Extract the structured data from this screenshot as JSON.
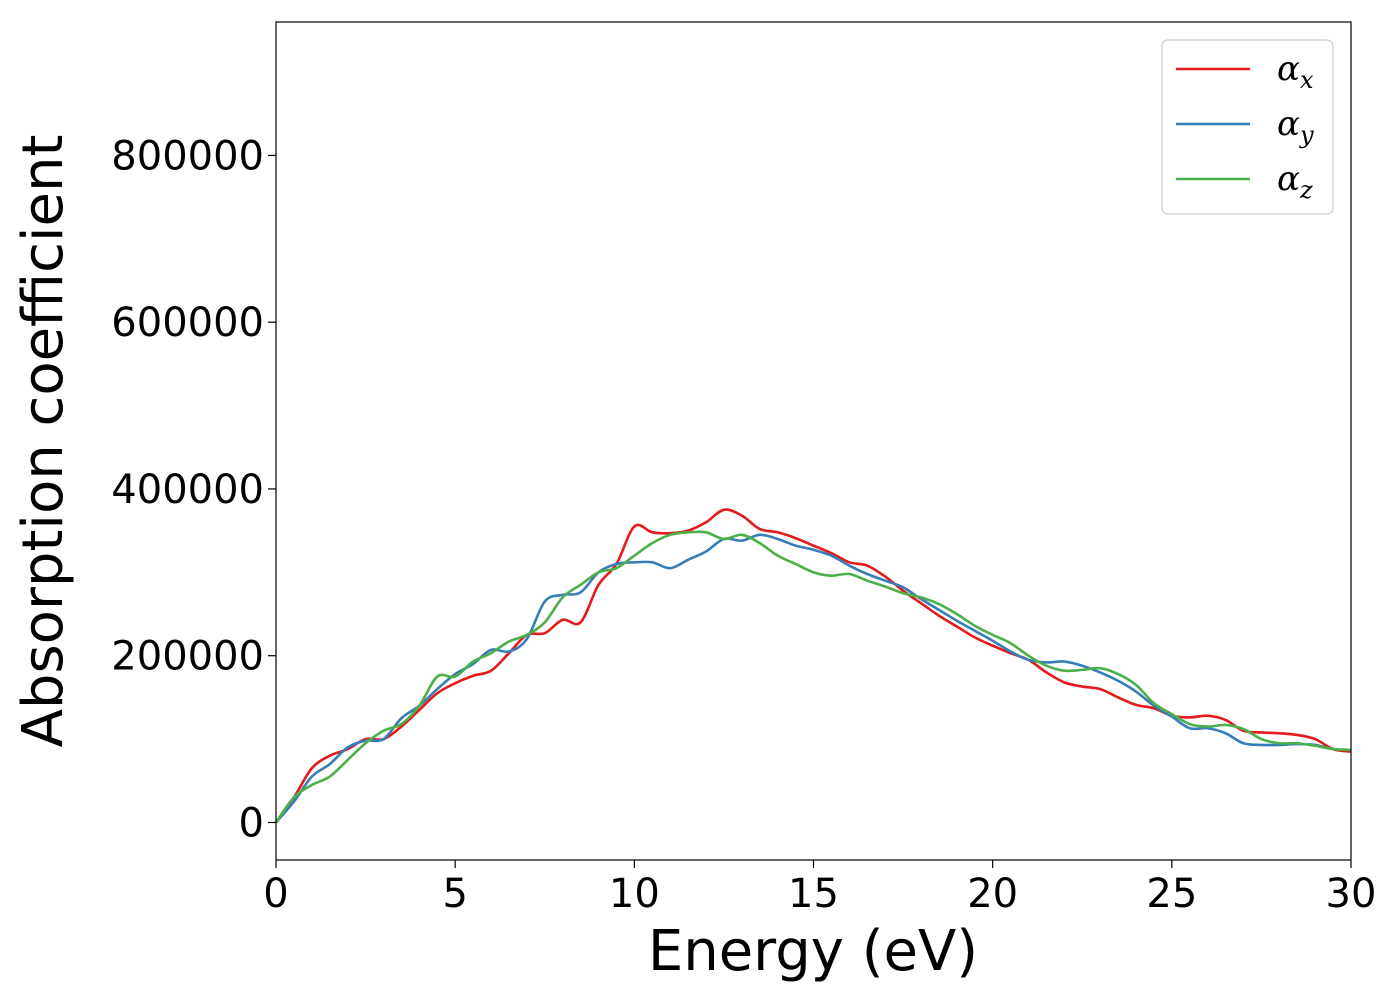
{
  "chart_data": {
    "type": "line",
    "xlabel": "Energy (eV)",
    "ylabel": "Absorption coefficient",
    "xlim": [
      0,
      30
    ],
    "ylim": [
      -45000,
      960000
    ],
    "x_ticks": [
      "0",
      "5",
      "10",
      "15",
      "20",
      "25",
      "30"
    ],
    "y_ticks": [
      "0",
      "200000",
      "400000",
      "600000",
      "800000"
    ],
    "grid": false,
    "legend_position": "top-right",
    "x": [
      0,
      0.5,
      1,
      1.5,
      2,
      2.5,
      3,
      3.5,
      4,
      4.5,
      5,
      5.5,
      6,
      6.5,
      7,
      7.5,
      8,
      8.5,
      9,
      9.5,
      10,
      10.5,
      11,
      11.5,
      12,
      12.5,
      13,
      13.5,
      14,
      14.5,
      15,
      15.5,
      16,
      16.5,
      17,
      17.5,
      18,
      18.5,
      19,
      19.5,
      20,
      20.5,
      21,
      21.5,
      22,
      22.5,
      23,
      23.5,
      24,
      24.5,
      25,
      25.5,
      26,
      26.5,
      27,
      27.5,
      28,
      28.5,
      29,
      29.5,
      30
    ],
    "series": [
      {
        "name": "x",
        "color": "#e41a1c",
        "values": [
          0,
          30000,
          65000,
          80000,
          88000,
          100000,
          100000,
          115000,
          135000,
          155000,
          167000,
          176000,
          182000,
          203000,
          225000,
          227000,
          243000,
          240000,
          285000,
          310000,
          355000,
          348000,
          347000,
          350000,
          360000,
          375000,
          368000,
          352000,
          348000,
          341000,
          332000,
          323000,
          312000,
          308000,
          295000,
          278000,
          263000,
          248000,
          235000,
          222000,
          212000,
          203000,
          195000,
          180000,
          168000,
          163000,
          160000,
          150000,
          141000,
          137000,
          128000,
          126000,
          128000,
          123000,
          110000,
          108000,
          107000,
          105000,
          100000,
          88000,
          85000
        ]
      },
      {
        "name": "y",
        "color": "#377eb8",
        "values": [
          0,
          25000,
          55000,
          70000,
          90000,
          98000,
          100000,
          125000,
          140000,
          160000,
          178000,
          190000,
          207000,
          205000,
          220000,
          265000,
          273000,
          276000,
          300000,
          310000,
          312000,
          312000,
          305000,
          315000,
          325000,
          340000,
          338000,
          345000,
          340000,
          332000,
          327000,
          320000,
          308000,
          298000,
          290000,
          282000,
          268000,
          255000,
          242000,
          230000,
          218000,
          205000,
          195000,
          192000,
          193000,
          188000,
          180000,
          170000,
          157000,
          140000,
          127000,
          113000,
          113000,
          107000,
          95000,
          93000,
          93000,
          94000,
          93000,
          88000,
          87000
        ]
      },
      {
        "name": "z",
        "color": "#4daf4a",
        "values": [
          0,
          30000,
          45000,
          55000,
          75000,
          95000,
          110000,
          118000,
          140000,
          175000,
          175000,
          193000,
          203000,
          217000,
          225000,
          240000,
          270000,
          285000,
          300000,
          305000,
          320000,
          335000,
          345000,
          348000,
          348000,
          340000,
          345000,
          335000,
          320000,
          310000,
          300000,
          296000,
          298000,
          290000,
          283000,
          275000,
          270000,
          262000,
          250000,
          236000,
          225000,
          215000,
          200000,
          188000,
          182000,
          183000,
          185000,
          178000,
          165000,
          143000,
          130000,
          118000,
          115000,
          117000,
          112000,
          100000,
          95000,
          95000,
          92000,
          88000,
          87000
        ]
      }
    ]
  }
}
